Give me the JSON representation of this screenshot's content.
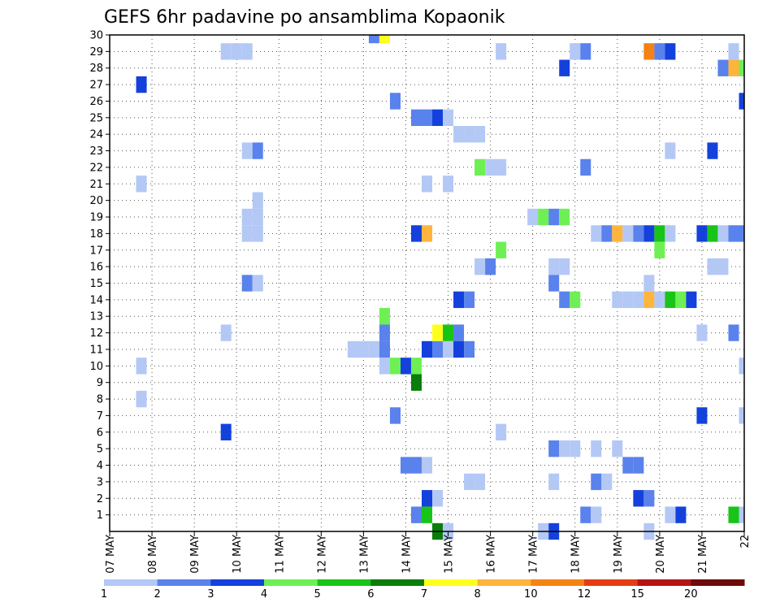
{
  "chart_data": {
    "type": "heatmap",
    "title": "GEFS 6hr padavine po ansamblima Kopaonik",
    "xlabel": "",
    "ylabel": "",
    "x_ticks": [
      "07 MAY",
      "08 MAY",
      "09 MAY",
      "10 MAY",
      "11 MAY",
      "12 MAY",
      "13 MAY",
      "14 MAY",
      "15 MAY",
      "16 MAY",
      "17 MAY",
      "18 MAY",
      "19 MAY",
      "20 MAY",
      "21 MAY",
      "22"
    ],
    "y_ticks": [
      1,
      2,
      3,
      4,
      5,
      6,
      7,
      8,
      9,
      10,
      11,
      12,
      13,
      14,
      15,
      16,
      17,
      18,
      19,
      20,
      21,
      22,
      23,
      24,
      25,
      26,
      27,
      28,
      29,
      30
    ],
    "x_unit": "6-hour step from 07 MAY 00Z",
    "x_range": [
      0,
      60
    ],
    "y_range": [
      0,
      30
    ],
    "grid": true,
    "colorbar": {
      "labels": [
        "1",
        "2",
        "3",
        "4",
        "5",
        "6",
        "7",
        "8",
        "10",
        "12",
        "15",
        "20"
      ],
      "colors": [
        "#b4c8f5",
        "#5a82ec",
        "#1441dc",
        "#6ef055",
        "#18c418",
        "#0a7d0a",
        "#ffff1e",
        "#ffb43c",
        "#f58214",
        "#e63c14",
        "#b41414",
        "#6e0a0a"
      ]
    },
    "cells": [
      {
        "t": 3,
        "m": 21,
        "c": 1
      },
      {
        "t": 3,
        "m": 10,
        "c": 1
      },
      {
        "t": 3,
        "m": 8,
        "c": 1
      },
      {
        "t": 3,
        "m": 27,
        "c": 3
      },
      {
        "t": 11,
        "m": 29,
        "c": 1
      },
      {
        "t": 12,
        "m": 29,
        "c": 1
      },
      {
        "t": 13,
        "m": 29,
        "c": 1
      },
      {
        "t": 11,
        "m": 12,
        "c": 1
      },
      {
        "t": 11,
        "m": 6,
        "c": 3
      },
      {
        "t": 13,
        "m": 23,
        "c": 1
      },
      {
        "t": 14,
        "m": 23,
        "c": 2
      },
      {
        "t": 14,
        "m": 20,
        "c": 1
      },
      {
        "t": 13,
        "m": 19,
        "c": 1
      },
      {
        "t": 14,
        "m": 19,
        "c": 1
      },
      {
        "t": 13,
        "m": 18,
        "c": 1
      },
      {
        "t": 14,
        "m": 18,
        "c": 1
      },
      {
        "t": 13,
        "m": 15,
        "c": 2
      },
      {
        "t": 14,
        "m": 15,
        "c": 1
      },
      {
        "t": 23,
        "m": 11,
        "c": 1
      },
      {
        "t": 24,
        "m": 11,
        "c": 1
      },
      {
        "t": 25,
        "m": 11,
        "c": 1
      },
      {
        "t": 26,
        "m": 11,
        "c": 1
      },
      {
        "t": 26,
        "m": 11,
        "c": 2
      },
      {
        "t": 25,
        "m": 30,
        "c": 2
      },
      {
        "t": 26,
        "m": 30,
        "c": 7
      },
      {
        "t": 26,
        "m": 13,
        "c": 4
      },
      {
        "t": 26,
        "m": 12,
        "c": 2
      },
      {
        "t": 26,
        "m": 10,
        "c": 1
      },
      {
        "t": 27,
        "m": 26,
        "c": 2
      },
      {
        "t": 27,
        "m": 7,
        "c": 2
      },
      {
        "t": 27,
        "m": 10,
        "c": 4
      },
      {
        "t": 28,
        "m": 10,
        "c": 3
      },
      {
        "t": 29,
        "m": 10,
        "c": 4
      },
      {
        "t": 29,
        "m": 9,
        "c": 6
      },
      {
        "t": 28,
        "m": 4,
        "c": 2
      },
      {
        "t": 29,
        "m": 4,
        "c": 2
      },
      {
        "t": 30,
        "m": 4,
        "c": 1
      },
      {
        "t": 29,
        "m": 1,
        "c": 2
      },
      {
        "t": 30,
        "m": 1,
        "c": 5
      },
      {
        "t": 30,
        "m": 2,
        "c": 3
      },
      {
        "t": 31,
        "m": 2,
        "c": 1
      },
      {
        "t": 31,
        "m": 0,
        "c": 6
      },
      {
        "t": 32,
        "m": 0,
        "c": 1
      },
      {
        "t": 29,
        "m": 25,
        "c": 2
      },
      {
        "t": 30,
        "m": 25,
        "c": 2
      },
      {
        "t": 31,
        "m": 25,
        "c": 3
      },
      {
        "t": 32,
        "m": 25,
        "c": 1
      },
      {
        "t": 29,
        "m": 18,
        "c": 3
      },
      {
        "t": 30,
        "m": 18,
        "c": 8
      },
      {
        "t": 30,
        "m": 21,
        "c": 1
      },
      {
        "t": 30,
        "m": 11,
        "c": 3
      },
      {
        "t": 31,
        "m": 11,
        "c": 2
      },
      {
        "t": 32,
        "m": 11,
        "c": 1
      },
      {
        "t": 31,
        "m": 12,
        "c": 7
      },
      {
        "t": 32,
        "m": 12,
        "c": 5
      },
      {
        "t": 33,
        "m": 12,
        "c": 2
      },
      {
        "t": 33,
        "m": 11,
        "c": 3
      },
      {
        "t": 34,
        "m": 11,
        "c": 2
      },
      {
        "t": 33,
        "m": 24,
        "c": 1
      },
      {
        "t": 34,
        "m": 24,
        "c": 1
      },
      {
        "t": 35,
        "m": 24,
        "c": 1
      },
      {
        "t": 32,
        "m": 21,
        "c": 1
      },
      {
        "t": 33,
        "m": 14,
        "c": 3
      },
      {
        "t": 34,
        "m": 14,
        "c": 2
      },
      {
        "t": 34,
        "m": 3,
        "c": 1
      },
      {
        "t": 35,
        "m": 3,
        "c": 1
      },
      {
        "t": 35,
        "m": 22,
        "c": 4
      },
      {
        "t": 36,
        "m": 22,
        "c": 1
      },
      {
        "t": 37,
        "m": 22,
        "c": 1
      },
      {
        "t": 35,
        "m": 16,
        "c": 1
      },
      {
        "t": 36,
        "m": 16,
        "c": 2
      },
      {
        "t": 37,
        "m": 17,
        "c": 4
      },
      {
        "t": 37,
        "m": 29,
        "c": 1
      },
      {
        "t": 37,
        "m": 6,
        "c": 1
      },
      {
        "t": 40,
        "m": 19,
        "c": 1
      },
      {
        "t": 41,
        "m": 19,
        "c": 4
      },
      {
        "t": 42,
        "m": 19,
        "c": 2
      },
      {
        "t": 43,
        "m": 19,
        "c": 4
      },
      {
        "t": 42,
        "m": 16,
        "c": 1
      },
      {
        "t": 43,
        "m": 16,
        "c": 1
      },
      {
        "t": 42,
        "m": 15,
        "c": 2
      },
      {
        "t": 43,
        "m": 14,
        "c": 2
      },
      {
        "t": 44,
        "m": 14,
        "c": 4
      },
      {
        "t": 42,
        "m": 5,
        "c": 2
      },
      {
        "t": 43,
        "m": 5,
        "c": 1
      },
      {
        "t": 44,
        "m": 5,
        "c": 1
      },
      {
        "t": 42,
        "m": 3,
        "c": 1
      },
      {
        "t": 41,
        "m": 0,
        "c": 1
      },
      {
        "t": 42,
        "m": 0,
        "c": 3
      },
      {
        "t": 43,
        "m": 28,
        "c": 3
      },
      {
        "t": 44,
        "m": 29,
        "c": 1
      },
      {
        "t": 45,
        "m": 29,
        "c": 2
      },
      {
        "t": 45,
        "m": 22,
        "c": 2
      },
      {
        "t": 45,
        "m": 1,
        "c": 2
      },
      {
        "t": 46,
        "m": 1,
        "c": 1
      },
      {
        "t": 46,
        "m": 3,
        "c": 2
      },
      {
        "t": 47,
        "m": 3,
        "c": 1
      },
      {
        "t": 46,
        "m": 5,
        "c": 1
      },
      {
        "t": 46,
        "m": 18,
        "c": 1
      },
      {
        "t": 47,
        "m": 18,
        "c": 2
      },
      {
        "t": 48,
        "m": 18,
        "c": 8
      },
      {
        "t": 49,
        "m": 18,
        "c": 1
      },
      {
        "t": 48,
        "m": 14,
        "c": 1
      },
      {
        "t": 49,
        "m": 14,
        "c": 1
      },
      {
        "t": 48,
        "m": 5,
        "c": 1
      },
      {
        "t": 49,
        "m": 4,
        "c": 2
      },
      {
        "t": 50,
        "m": 4,
        "c": 2
      },
      {
        "t": 50,
        "m": 18,
        "c": 2
      },
      {
        "t": 51,
        "m": 18,
        "c": 3
      },
      {
        "t": 52,
        "m": 18,
        "c": 5
      },
      {
        "t": 52,
        "m": 17,
        "c": 4
      },
      {
        "t": 50,
        "m": 14,
        "c": 1
      },
      {
        "t": 51,
        "m": 14,
        "c": 8
      },
      {
        "t": 52,
        "m": 14,
        "c": 1
      },
      {
        "t": 53,
        "m": 14,
        "c": 5
      },
      {
        "t": 54,
        "m": 14,
        "c": 4
      },
      {
        "t": 51,
        "m": 15,
        "c": 1
      },
      {
        "t": 50,
        "m": 2,
        "c": 3
      },
      {
        "t": 51,
        "m": 2,
        "c": 2
      },
      {
        "t": 51,
        "m": 0,
        "c": 1
      },
      {
        "t": 51,
        "m": 29,
        "c": 9
      },
      {
        "t": 52,
        "m": 29,
        "c": 2
      },
      {
        "t": 53,
        "m": 29,
        "c": 3
      },
      {
        "t": 53,
        "m": 18,
        "c": 1
      },
      {
        "t": 53,
        "m": 23,
        "c": 1
      },
      {
        "t": 53,
        "m": 1,
        "c": 1
      },
      {
        "t": 54,
        "m": 1,
        "c": 3
      },
      {
        "t": 55,
        "m": 14,
        "c": 3
      },
      {
        "t": 56,
        "m": 12,
        "c": 1
      },
      {
        "t": 56,
        "m": 7,
        "c": 3
      },
      {
        "t": 56,
        "m": 18,
        "c": 3
      },
      {
        "t": 57,
        "m": 18,
        "c": 5
      },
      {
        "t": 58,
        "m": 18,
        "c": 1
      },
      {
        "t": 59,
        "m": 18,
        "c": 2
      },
      {
        "t": 57,
        "m": 23,
        "c": 3
      },
      {
        "t": 57,
        "m": 16,
        "c": 1
      },
      {
        "t": 58,
        "m": 16,
        "c": 1
      },
      {
        "t": 58,
        "m": 28,
        "c": 2
      },
      {
        "t": 59,
        "m": 28,
        "c": 8
      },
      {
        "t": 59,
        "m": 29,
        "c": 1
      },
      {
        "t": 59,
        "m": 12,
        "c": 2
      },
      {
        "t": 59,
        "m": 1,
        "c": 5
      },
      {
        "t": 60,
        "m": 1,
        "c": 1
      },
      {
        "t": 60,
        "m": 28,
        "c": 4
      },
      {
        "t": 60,
        "m": 26,
        "c": 3
      },
      {
        "t": 60,
        "m": 10,
        "c": 1
      },
      {
        "t": 60,
        "m": 7,
        "c": 1
      },
      {
        "t": 60,
        "m": 18,
        "c": 2
      }
    ]
  }
}
